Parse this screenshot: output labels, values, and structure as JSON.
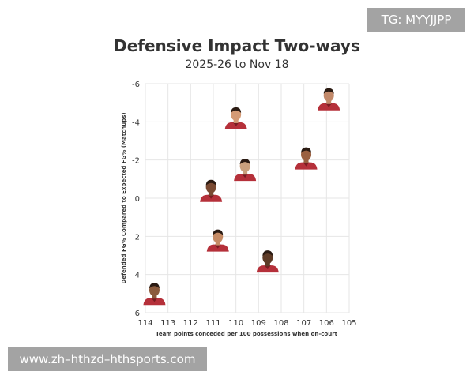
{
  "watermark_tag": "TG: MYYJJPP",
  "footer_url": "www.zh–hthzd–hthsports.com",
  "chart_data": {
    "type": "scatter",
    "title": "Defensive Impact Two-ways",
    "subtitle": "2025-26 to Nov 18",
    "xlabel": "Team points conceded per 100 possessions when on-court",
    "ylabel": "Defended FG% Compared to Expected FG% (Matchups)",
    "xlim": [
      114,
      105
    ],
    "ylim": [
      6,
      -6
    ],
    "x_ticks": [
      "114",
      "113",
      "112",
      "111",
      "110",
      "109",
      "108",
      "107",
      "106",
      "105"
    ],
    "y_ticks": [
      "-6",
      "-4",
      "-2",
      "0",
      "2",
      "4",
      "6"
    ],
    "grid": true,
    "marker": "player-headshot",
    "colors": {
      "jersey": "#b5303a",
      "skin_tones": [
        "#8a5a3c",
        "#c68b65",
        "#7a4a32",
        "#d49a75",
        "#caa07d",
        "#5e3b27",
        "#9a6040",
        "#c2896a"
      ]
    },
    "points": [
      {
        "x": 113.6,
        "y": 5.1
      },
      {
        "x": 110.8,
        "y": 2.3
      },
      {
        "x": 111.1,
        "y": -0.3
      },
      {
        "x": 110.0,
        "y": -4.1
      },
      {
        "x": 109.6,
        "y": -1.4
      },
      {
        "x": 108.6,
        "y": 3.4
      },
      {
        "x": 106.9,
        "y": -2.0
      },
      {
        "x": 105.9,
        "y": -5.1
      }
    ]
  }
}
